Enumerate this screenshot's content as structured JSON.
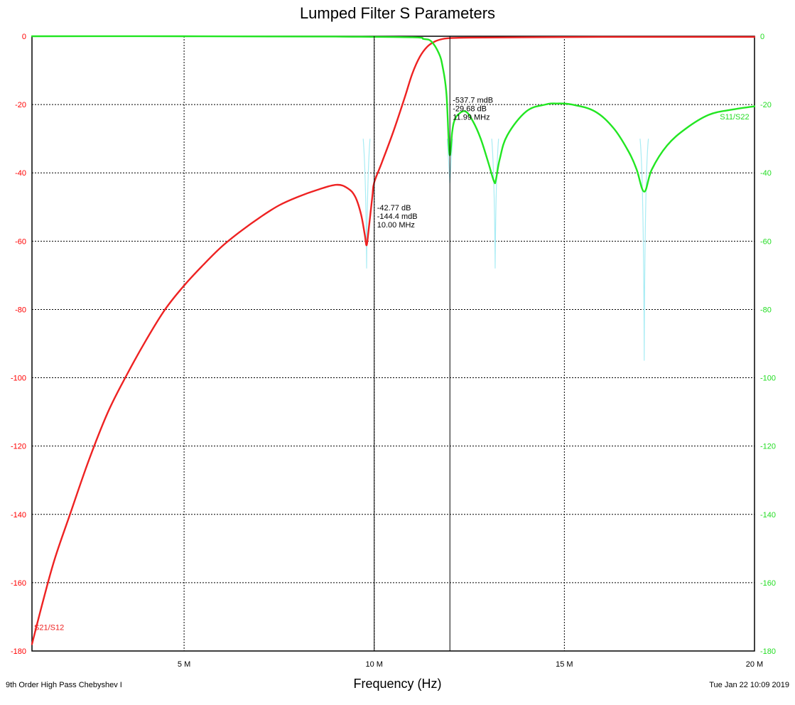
{
  "chart_data": {
    "type": "line",
    "title": "Lumped Filter S Parameters",
    "xlabel": "Frequency (Hz)",
    "subtitle": "9th Order High Pass Chebyshev I",
    "timestamp": "Tue Jan 22 10:09 2019",
    "xlim": [
      1000000,
      20000000
    ],
    "ylim": [
      -180,
      0
    ],
    "y2lim": [
      -180,
      0
    ],
    "x_ticks": [
      5000000,
      10000000,
      15000000,
      20000000
    ],
    "x_tick_labels": [
      "5 M",
      "10 M",
      "15 M",
      "20 M"
    ],
    "y_ticks": [
      0,
      -20,
      -40,
      -60,
      -80,
      -100,
      -120,
      -140,
      -160,
      -180
    ],
    "y_tick_labels": [
      "0",
      "-20",
      "-40",
      "-60",
      "-80",
      "-100",
      "-120",
      "-140",
      "-160",
      "-180"
    ],
    "grid": true,
    "colors": {
      "s21": "#ee2222",
      "s11": "#22e622",
      "s11_ghost": "#a8ecf4",
      "left_axis_text": "#ff0000",
      "right_axis_text": "#22dd22"
    },
    "series": [
      {
        "name": "S21/S12",
        "axis": "left",
        "color": "#ee2222",
        "x": [
          1000000,
          1300000,
          1600000,
          2000000,
          2500000,
          3000000,
          3500000,
          4000000,
          4500000,
          5000000,
          5500000,
          6000000,
          6500000,
          7000000,
          7500000,
          8000000,
          8500000,
          9000000,
          9300000,
          9500000,
          9650000,
          9750000,
          9800000,
          9850000,
          9950000,
          10000000,
          10200000,
          10500000,
          10800000,
          11000000,
          11200000,
          11400000,
          11600000,
          11800000,
          12000000,
          12500000,
          14000000,
          16000000,
          18000000,
          20000000
        ],
        "y": [
          -178,
          -165,
          -153,
          -140,
          -124,
          -110,
          -99,
          -89,
          -80,
          -73,
          -67,
          -61.5,
          -57,
          -53,
          -49.5,
          -47,
          -45,
          -43.5,
          -44.5,
          -47,
          -52,
          -58,
          -61.2,
          -57,
          -47,
          -42.8,
          -37,
          -28,
          -18,
          -11,
          -6,
          -3,
          -1.5,
          -0.8,
          -0.54,
          -0.4,
          -0.3,
          -0.2,
          -0.2,
          -0.2
        ]
      },
      {
        "name": "S11/S22",
        "axis": "right",
        "color": "#22e622",
        "x": [
          1000000,
          5000000,
          9000000,
          11000000,
          11300000,
          11500000,
          11700000,
          11800000,
          11900000,
          11980000,
          12050000,
          12100000,
          12200000,
          12400000,
          12600000,
          12800000,
          13000000,
          13150000,
          13200000,
          13300000,
          13500000,
          14000000,
          14500000,
          14800000,
          15200000,
          15800000,
          16300000,
          16700000,
          16900000,
          17100000,
          17300000,
          17700000,
          18200000,
          18800000,
          19400000,
          20000000
        ],
        "y": [
          0,
          0,
          -0.1,
          -0.3,
          -0.8,
          -1.5,
          -5,
          -9,
          -17,
          -34.5,
          -28,
          -25,
          -23,
          -22,
          -25,
          -30,
          -37,
          -42.5,
          -42,
          -36,
          -29,
          -22,
          -20,
          -19.7,
          -20,
          -22,
          -27,
          -34,
          -39,
          -45.5,
          -39,
          -32,
          -27,
          -23,
          -21.5,
          -20.5
        ]
      }
    ],
    "ghost_dips": [
      {
        "x": 9800000,
        "bottom": -68,
        "width": 90000
      },
      {
        "x": 11990000,
        "bottom": -43,
        "width": 70000
      },
      {
        "x": 13180000,
        "bottom": -68,
        "width": 90000
      },
      {
        "x": 17100000,
        "bottom": -95,
        "width": 110000
      }
    ],
    "series_labels": [
      {
        "text": "S21/S12",
        "x": 1000000,
        "y": -173,
        "color": "#ee2222"
      },
      {
        "text": "S11/S22",
        "x": 19900000,
        "y": -23.5,
        "color": "#22dd22",
        "align": "end"
      }
    ],
    "markers": [
      {
        "x": 10000000,
        "lines": [
          "-42.77 dB",
          "-144.4 mdB",
          "10.00 MHz"
        ],
        "label_y": -51
      },
      {
        "x": 11990000,
        "lines": [
          "-537.7 mdB",
          "-29.68 dB",
          "11.99 MHz"
        ],
        "label_y": -19.5
      }
    ]
  }
}
